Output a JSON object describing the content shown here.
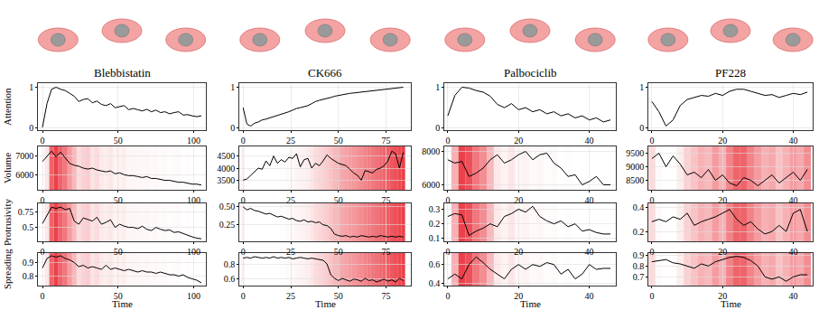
{
  "chart_data": [
    {
      "type": "line",
      "title": "Blebbistatin",
      "y_label": "Attention",
      "color": "#000000",
      "grid": true,
      "x": [
        0,
        3,
        6,
        9,
        12,
        15,
        18,
        21,
        24,
        27,
        30,
        33,
        36,
        39,
        42,
        45,
        48,
        51,
        54,
        57,
        60,
        63,
        66,
        69,
        72,
        75,
        78,
        81,
        84,
        87,
        90,
        93,
        96,
        99,
        102,
        105
      ],
      "values": [
        0.02,
        0.6,
        0.95,
        1.0,
        0.95,
        0.92,
        0.85,
        0.78,
        0.65,
        0.7,
        0.72,
        0.62,
        0.66,
        0.58,
        0.55,
        0.6,
        0.5,
        0.52,
        0.55,
        0.45,
        0.48,
        0.45,
        0.42,
        0.46,
        0.4,
        0.44,
        0.38,
        0.4,
        0.35,
        0.38,
        0.4,
        0.32,
        0.33,
        0.3,
        0.28,
        0.3
      ],
      "xlim": [
        -3,
        108
      ],
      "ylim": [
        -0.05,
        1.1
      ],
      "xticks": [
        0,
        50,
        100
      ],
      "yticks": [
        0,
        1
      ]
    },
    {
      "type": "line",
      "title": "CK666",
      "color": "#000000",
      "grid": true,
      "x": [
        0,
        2,
        4,
        6,
        8,
        10,
        12,
        14,
        16,
        18,
        20,
        22,
        24,
        26,
        28,
        30,
        32,
        34,
        36,
        38,
        40,
        42,
        44,
        46,
        48,
        50,
        52,
        54,
        56,
        58,
        60,
        62,
        64,
        66,
        68,
        70,
        72,
        74,
        76,
        78,
        80,
        82,
        84
      ],
      "values": [
        0.5,
        0.1,
        0.05,
        0.12,
        0.15,
        0.2,
        0.22,
        0.25,
        0.28,
        0.3,
        0.33,
        0.36,
        0.4,
        0.44,
        0.48,
        0.5,
        0.52,
        0.55,
        0.6,
        0.65,
        0.68,
        0.7,
        0.72,
        0.75,
        0.78,
        0.8,
        0.82,
        0.84,
        0.85,
        0.86,
        0.87,
        0.88,
        0.9,
        0.91,
        0.92,
        0.93,
        0.94,
        0.95,
        0.96,
        0.97,
        0.98,
        0.99,
        1.0
      ],
      "xlim": [
        -2,
        88
      ],
      "ylim": [
        -0.05,
        1.1
      ],
      "xticks": [
        0,
        25,
        50,
        75
      ],
      "yticks": [
        0,
        1
      ]
    },
    {
      "type": "line",
      "title": "Palbociclib",
      "color": "#000000",
      "grid": true,
      "x": [
        0,
        2,
        4,
        6,
        8,
        10,
        12,
        14,
        16,
        18,
        20,
        22,
        24,
        26,
        28,
        30,
        32,
        34,
        36,
        38,
        40,
        42,
        44,
        46
      ],
      "values": [
        0.3,
        0.8,
        1.0,
        0.98,
        0.92,
        0.88,
        0.78,
        0.58,
        0.5,
        0.6,
        0.45,
        0.5,
        0.4,
        0.45,
        0.35,
        0.4,
        0.3,
        0.35,
        0.25,
        0.3,
        0.2,
        0.25,
        0.15,
        0.2
      ],
      "xlim": [
        -1,
        47.5
      ],
      "ylim": [
        -0.05,
        1.1
      ],
      "xticks": [
        0,
        20,
        40
      ],
      "yticks": [
        0,
        1
      ]
    },
    {
      "type": "line",
      "title": "PF228",
      "color": "#000000",
      "grid": true,
      "x": [
        0,
        2,
        4,
        6,
        8,
        10,
        12,
        14,
        16,
        18,
        20,
        22,
        24,
        26,
        28,
        30,
        32,
        34,
        36,
        38,
        40,
        42,
        44
      ],
      "values": [
        0.65,
        0.4,
        0.05,
        0.2,
        0.55,
        0.7,
        0.75,
        0.8,
        0.78,
        0.85,
        0.8,
        0.9,
        0.95,
        0.95,
        0.9,
        0.85,
        0.8,
        0.82,
        0.75,
        0.8,
        0.85,
        0.82,
        0.88
      ],
      "xlim": [
        -1,
        45.5
      ],
      "ylim": [
        -0.05,
        1.1
      ],
      "xticks": [
        0,
        20,
        40
      ],
      "yticks": [
        0,
        1
      ]
    },
    {
      "type": "line",
      "y_label": "Volume",
      "color": "#000000",
      "grid": true,
      "x": [
        0,
        3,
        6,
        9,
        12,
        15,
        18,
        21,
        24,
        27,
        30,
        33,
        36,
        39,
        42,
        45,
        48,
        51,
        54,
        57,
        60,
        63,
        66,
        69,
        72,
        75,
        78,
        81,
        84,
        87,
        90,
        93,
        96,
        99,
        102,
        105
      ],
      "values": [
        6700,
        7000,
        7250,
        6950,
        7200,
        6900,
        6600,
        6500,
        6450,
        6350,
        6300,
        6350,
        6250,
        6200,
        6150,
        6200,
        6050,
        6100,
        6000,
        5950,
        5950,
        5900,
        5850,
        5900,
        5800,
        5800,
        5750,
        5700,
        5700,
        5650,
        5600,
        5600,
        5550,
        5500,
        5500,
        5450
      ],
      "xlim": [
        -3,
        108
      ],
      "ylim": [
        5200,
        7500
      ],
      "xticks": [
        0,
        50,
        100
      ],
      "yticks": [
        6000,
        7000
      ]
    },
    {
      "type": "line",
      "color": "#000000",
      "grid": true,
      "x": [
        0,
        2,
        4,
        6,
        8,
        10,
        12,
        14,
        16,
        18,
        20,
        22,
        24,
        26,
        28,
        30,
        32,
        34,
        36,
        38,
        40,
        42,
        44,
        46,
        48,
        50,
        52,
        54,
        56,
        58,
        60,
        62,
        64,
        66,
        68,
        70,
        72,
        74,
        76,
        78,
        80,
        82,
        84
      ],
      "values": [
        3500,
        3550,
        3700,
        3850,
        4000,
        3950,
        4300,
        4100,
        4500,
        4200,
        4350,
        4250,
        4450,
        4400,
        4600,
        4050,
        4350,
        4400,
        4000,
        4200,
        4100,
        4300,
        4550,
        4400,
        4300,
        4200,
        4150,
        4100,
        3950,
        3800,
        3700,
        3500,
        3900,
        3850,
        3800,
        3950,
        4000,
        4100,
        4300,
        4700,
        4600,
        4000,
        4650
      ],
      "xlim": [
        -2,
        88
      ],
      "ylim": [
        3100,
        4900
      ],
      "xticks": [
        0,
        25,
        50,
        75
      ],
      "yticks": [
        3500,
        4000,
        4500
      ]
    },
    {
      "type": "line",
      "color": "#000000",
      "grid": true,
      "x": [
        0,
        2,
        4,
        6,
        8,
        10,
        12,
        14,
        16,
        18,
        20,
        22,
        24,
        26,
        28,
        30,
        32,
        34,
        36,
        38,
        40,
        42,
        44,
        46
      ],
      "values": [
        7500,
        7300,
        7400,
        6500,
        6700,
        7000,
        7500,
        7800,
        7300,
        7500,
        7800,
        8000,
        7500,
        7800,
        7900,
        7300,
        7000,
        6500,
        6600,
        6000,
        6200,
        6500,
        6000,
        6000
      ],
      "xlim": [
        -1,
        47.5
      ],
      "ylim": [
        5700,
        8300
      ],
      "xticks": [
        0,
        20,
        40
      ],
      "yticks": [
        6000,
        8000
      ]
    },
    {
      "type": "line",
      "color": "#000000",
      "grid": true,
      "x": [
        0,
        2,
        4,
        6,
        8,
        10,
        12,
        14,
        16,
        18,
        20,
        22,
        24,
        26,
        28,
        30,
        32,
        34,
        36,
        38,
        40,
        42,
        44
      ],
      "values": [
        9300,
        9500,
        9000,
        9400,
        9100,
        8700,
        8800,
        8600,
        8900,
        8500,
        8700,
        8400,
        8300,
        8600,
        8500,
        8300,
        8500,
        8700,
        8400,
        8600,
        8800,
        8500,
        8900
      ],
      "xlim": [
        -1,
        45.5
      ],
      "ylim": [
        8150,
        9750
      ],
      "xticks": [
        0,
        20,
        40
      ],
      "yticks": [
        8500,
        9000,
        9500
      ]
    },
    {
      "type": "line",
      "y_label": "Protrusivity",
      "color": "#000000",
      "grid": true,
      "x": [
        0,
        3,
        6,
        9,
        12,
        15,
        18,
        21,
        24,
        27,
        30,
        33,
        36,
        39,
        42,
        45,
        48,
        51,
        54,
        57,
        60,
        63,
        66,
        69,
        72,
        75,
        78,
        81,
        84,
        87,
        90,
        93,
        96,
        99,
        102,
        105
      ],
      "values": [
        0.56,
        0.7,
        0.82,
        0.8,
        0.82,
        0.78,
        0.8,
        0.6,
        0.55,
        0.65,
        0.62,
        0.6,
        0.66,
        0.55,
        0.58,
        0.62,
        0.5,
        0.55,
        0.52,
        0.5,
        0.5,
        0.48,
        0.52,
        0.47,
        0.45,
        0.5,
        0.47,
        0.45,
        0.46,
        0.42,
        0.43,
        0.4,
        0.38,
        0.35,
        0.33,
        0.32
      ],
      "xlim": [
        -3,
        108
      ],
      "ylim": [
        0.28,
        0.88
      ],
      "xticks": [
        0,
        50,
        100
      ],
      "yticks": [
        0.5,
        0.75
      ]
    },
    {
      "type": "line",
      "color": "#000000",
      "grid": true,
      "x": [
        0,
        2,
        4,
        6,
        8,
        10,
        12,
        14,
        16,
        18,
        20,
        22,
        24,
        26,
        28,
        30,
        32,
        34,
        36,
        38,
        40,
        42,
        44,
        46,
        48,
        50,
        52,
        54,
        56,
        58,
        60,
        62,
        64,
        66,
        68,
        70,
        72,
        74,
        76,
        78,
        80,
        82,
        84
      ],
      "values": [
        0.5,
        0.46,
        0.48,
        0.45,
        0.44,
        0.42,
        0.4,
        0.41,
        0.38,
        0.36,
        0.37,
        0.35,
        0.33,
        0.34,
        0.31,
        0.3,
        0.32,
        0.29,
        0.3,
        0.28,
        0.29,
        0.25,
        0.24,
        0.2,
        0.12,
        0.1,
        0.09,
        0.1,
        0.08,
        0.09,
        0.08,
        0.1,
        0.09,
        0.08,
        0.09,
        0.08,
        0.1,
        0.09,
        0.08,
        0.09,
        0.08,
        0.09,
        0.08
      ],
      "xlim": [
        -2,
        88
      ],
      "ylim": [
        0.02,
        0.55
      ],
      "xticks": [
        0,
        25,
        50,
        75
      ],
      "yticks": [
        0.25,
        {
          "value": 0.5,
          "label": "0.50"
        }
      ]
    },
    {
      "type": "line",
      "color": "#000000",
      "grid": true,
      "x": [
        0,
        2,
        4,
        6,
        8,
        10,
        12,
        14,
        16,
        18,
        20,
        22,
        24,
        26,
        28,
        30,
        32,
        34,
        36,
        38,
        40,
        42,
        44,
        46
      ],
      "values": [
        0.25,
        0.27,
        0.26,
        0.12,
        0.15,
        0.17,
        0.2,
        0.18,
        0.25,
        0.27,
        0.3,
        0.28,
        0.32,
        0.25,
        0.22,
        0.2,
        0.22,
        0.18,
        0.2,
        0.15,
        0.16,
        0.14,
        0.13,
        0.13
      ],
      "xlim": [
        -1,
        47.5
      ],
      "ylim": [
        0.08,
        0.34
      ],
      "xticks": [
        0,
        20,
        40
      ],
      "yticks": [
        0.1,
        0.2,
        0.3
      ]
    },
    {
      "type": "line",
      "color": "#000000",
      "grid": true,
      "x": [
        0,
        2,
        4,
        6,
        8,
        10,
        12,
        14,
        16,
        18,
        20,
        22,
        24,
        26,
        28,
        30,
        32,
        34,
        36,
        38,
        40,
        42,
        44
      ],
      "values": [
        0.28,
        0.3,
        0.28,
        0.32,
        0.3,
        0.35,
        0.25,
        0.28,
        0.3,
        0.32,
        0.35,
        0.38,
        0.3,
        0.25,
        0.28,
        0.22,
        0.18,
        0.2,
        0.25,
        0.2,
        0.35,
        0.38,
        0.2
      ],
      "xlim": [
        -1,
        45.5
      ],
      "ylim": [
        0.12,
        0.43
      ],
      "xticks": [
        0,
        20,
        40
      ],
      "yticks": [
        0.2,
        0.4
      ]
    },
    {
      "type": "line",
      "y_label": "Spreading",
      "x_label": "Time",
      "color": "#000000",
      "grid": true,
      "x": [
        0,
        3,
        6,
        9,
        12,
        15,
        18,
        21,
        24,
        27,
        30,
        33,
        36,
        39,
        42,
        45,
        48,
        51,
        54,
        57,
        60,
        63,
        66,
        69,
        72,
        75,
        78,
        81,
        84,
        87,
        90,
        93,
        96,
        99,
        102,
        105
      ],
      "values": [
        0.86,
        0.93,
        0.95,
        0.94,
        0.95,
        0.93,
        0.92,
        0.9,
        0.87,
        0.88,
        0.86,
        0.87,
        0.86,
        0.85,
        0.88,
        0.85,
        0.86,
        0.85,
        0.84,
        0.85,
        0.84,
        0.83,
        0.84,
        0.83,
        0.83,
        0.82,
        0.83,
        0.82,
        0.81,
        0.81,
        0.8,
        0.81,
        0.79,
        0.78,
        0.77,
        0.75
      ],
      "xlim": [
        -3,
        108
      ],
      "ylim": [
        0.73,
        0.97
      ],
      "xticks": [
        0,
        50,
        100
      ],
      "yticks": [
        0.8,
        0.9
      ]
    },
    {
      "type": "line",
      "x_label": "Time",
      "color": "#000000",
      "grid": true,
      "x": [
        0,
        2,
        4,
        6,
        8,
        10,
        12,
        14,
        16,
        18,
        20,
        22,
        24,
        26,
        28,
        30,
        32,
        34,
        36,
        38,
        40,
        42,
        44,
        46,
        48,
        50,
        52,
        54,
        56,
        58,
        60,
        62,
        64,
        66,
        68,
        70,
        72,
        74,
        76,
        78,
        80,
        82,
        84
      ],
      "values": [
        0.88,
        0.89,
        0.88,
        0.9,
        0.89,
        0.88,
        0.89,
        0.88,
        0.9,
        0.88,
        0.89,
        0.88,
        0.89,
        0.87,
        0.88,
        0.89,
        0.88,
        0.87,
        0.88,
        0.87,
        0.86,
        0.85,
        0.8,
        0.65,
        0.6,
        0.57,
        0.6,
        0.58,
        0.56,
        0.59,
        0.58,
        0.56,
        0.6,
        0.57,
        0.58,
        0.55,
        0.57,
        0.59,
        0.56,
        0.58,
        0.55,
        0.6,
        0.57
      ],
      "xlim": [
        -2,
        88
      ],
      "ylim": [
        0.5,
        0.95
      ],
      "xticks": [
        0,
        25,
        50,
        75
      ],
      "yticks": [
        0.6,
        0.8
      ]
    },
    {
      "type": "line",
      "x_label": "Time",
      "color": "#000000",
      "grid": true,
      "x": [
        0,
        2,
        4,
        6,
        8,
        10,
        12,
        14,
        16,
        18,
        20,
        22,
        24,
        26,
        28,
        30,
        32,
        34,
        36,
        38,
        40,
        42,
        44,
        46
      ],
      "values": [
        0.45,
        0.5,
        0.45,
        0.6,
        0.68,
        0.62,
        0.55,
        0.5,
        0.45,
        0.55,
        0.6,
        0.55,
        0.6,
        0.58,
        0.62,
        0.6,
        0.5,
        0.55,
        0.45,
        0.5,
        0.6,
        0.55,
        0.56,
        0.56
      ],
      "xlim": [
        -1,
        47.5
      ],
      "ylim": [
        0.38,
        0.72
      ],
      "xticks": [
        0,
        20,
        40
      ],
      "yticks": [
        0.4,
        0.6
      ]
    },
    {
      "type": "line",
      "x_label": "Time",
      "color": "#000000",
      "grid": true,
      "x": [
        0,
        2,
        4,
        6,
        8,
        10,
        12,
        14,
        16,
        18,
        20,
        22,
        24,
        26,
        28,
        30,
        32,
        34,
        36,
        38,
        40,
        42,
        44
      ],
      "values": [
        0.84,
        0.85,
        0.86,
        0.83,
        0.82,
        0.8,
        0.78,
        0.82,
        0.8,
        0.84,
        0.86,
        0.88,
        0.89,
        0.88,
        0.85,
        0.8,
        0.7,
        0.68,
        0.7,
        0.66,
        0.7,
        0.72,
        0.72
      ],
      "xlim": [
        -1,
        45.5
      ],
      "ylim": [
        0.62,
        0.92
      ],
      "xticks": [
        0,
        20,
        40
      ],
      "yticks": [
        0.7,
        0.8,
        0.9
      ]
    }
  ]
}
